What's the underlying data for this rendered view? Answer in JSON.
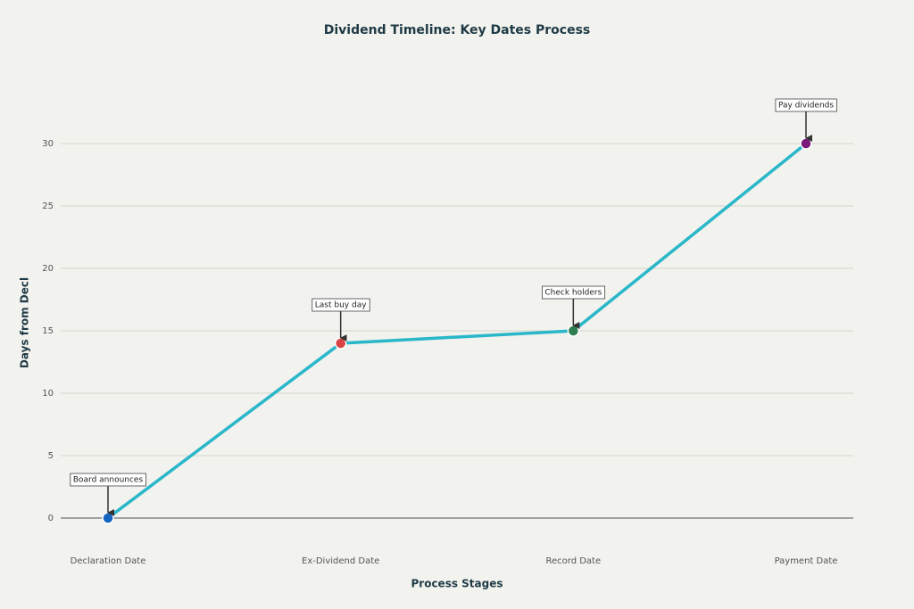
{
  "chart_data": {
    "type": "line",
    "title": "Dividend Timeline: Key Dates Process",
    "x_label": "Process Stages",
    "y_label": "Days from Decl",
    "categories": [
      "Declaration Date",
      "Ex-Dividend Date",
      "Record Date",
      "Payment Date"
    ],
    "series": [
      {
        "name": "Days",
        "color": "#2ab7ca",
        "values": [
          0,
          14,
          15,
          30
        ],
        "marker_colors": [
          "#1565c0",
          "#d94444",
          "#2e7d4f",
          "#7b1a7b"
        ],
        "point_labels": [
          "Board announces",
          "Last buy day",
          "Check holders",
          "Pay dividends"
        ]
      }
    ],
    "ylim": [
      -2.5,
      35
    ],
    "yticks": [
      0,
      5,
      10,
      15,
      20,
      25,
      30
    ],
    "grid": true
  }
}
